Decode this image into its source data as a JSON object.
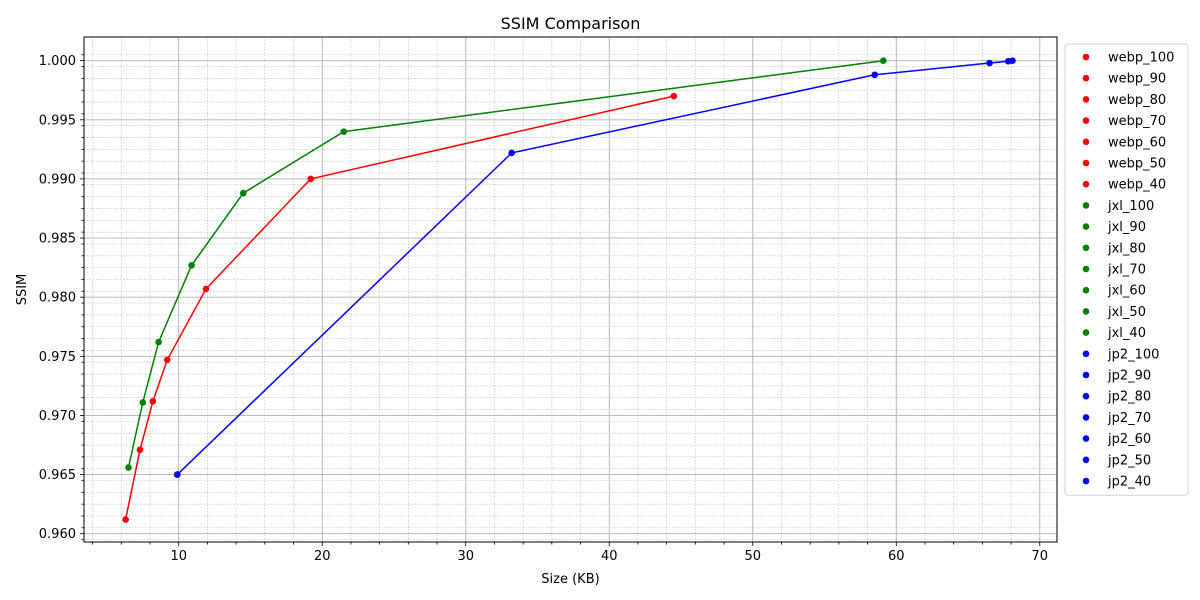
{
  "chart_data": {
    "type": "line",
    "title": "SSIM Comparison",
    "xlabel": "Size (KB)",
    "ylabel": "SSIM",
    "xlim": [
      3.4,
      71.2
    ],
    "ylim": [
      0.9593,
      1.002
    ],
    "xticks": [
      10,
      20,
      30,
      40,
      50,
      60,
      70
    ],
    "yticks": [
      0.96,
      0.965,
      0.97,
      0.975,
      0.98,
      0.985,
      0.99,
      0.995,
      1.0
    ],
    "ytick_labels": [
      "0.960",
      "0.965",
      "0.970",
      "0.975",
      "0.980",
      "0.985",
      "0.990",
      "0.995",
      "1.000"
    ],
    "grid": "major and minor",
    "legend_position": "outside right",
    "series": [
      {
        "color": "#ff0000",
        "points": [
          {
            "label": "webp_100",
            "x": 44.5,
            "y": 0.997
          },
          {
            "label": "webp_90",
            "x": 19.2,
            "y": 0.99
          },
          {
            "label": "webp_80",
            "x": 11.9,
            "y": 0.9807
          },
          {
            "label": "webp_70",
            "x": 9.2,
            "y": 0.9747
          },
          {
            "label": "webp_60",
            "x": 8.2,
            "y": 0.9712
          },
          {
            "label": "webp_50",
            "x": 7.3,
            "y": 0.9671
          },
          {
            "label": "webp_40",
            "x": 6.3,
            "y": 0.9612
          }
        ]
      },
      {
        "color": "#008000",
        "points": [
          {
            "label": "jxl_100",
            "x": 59.1,
            "y": 1.0
          },
          {
            "label": "jxl_90",
            "x": 21.5,
            "y": 0.994
          },
          {
            "label": "jxl_80",
            "x": 14.5,
            "y": 0.9888
          },
          {
            "label": "jxl_70",
            "x": 10.9,
            "y": 0.9827
          },
          {
            "label": "jxl_60",
            "x": 8.6,
            "y": 0.9762
          },
          {
            "label": "jxl_50",
            "x": 7.5,
            "y": 0.9711
          },
          {
            "label": "jxl_40",
            "x": 6.5,
            "y": 0.9656
          }
        ]
      },
      {
        "color": "#0000ff",
        "points": [
          {
            "label": "jp2_100",
            "x": 68.1,
            "y": 1.0
          },
          {
            "label": "jp2_90",
            "x": 67.8,
            "y": 0.99995
          },
          {
            "label": "jp2_80",
            "x": 66.5,
            "y": 0.9998
          },
          {
            "label": "jp2_70",
            "x": 58.5,
            "y": 0.9988
          },
          {
            "label": "jp2_60",
            "x": 33.2,
            "y": 0.9922
          },
          {
            "label": "jp2_50",
            "x": 9.9,
            "y": 0.965
          },
          {
            "label": "jp2_40",
            "x": 9.9,
            "y": 0.965
          }
        ]
      }
    ]
  }
}
